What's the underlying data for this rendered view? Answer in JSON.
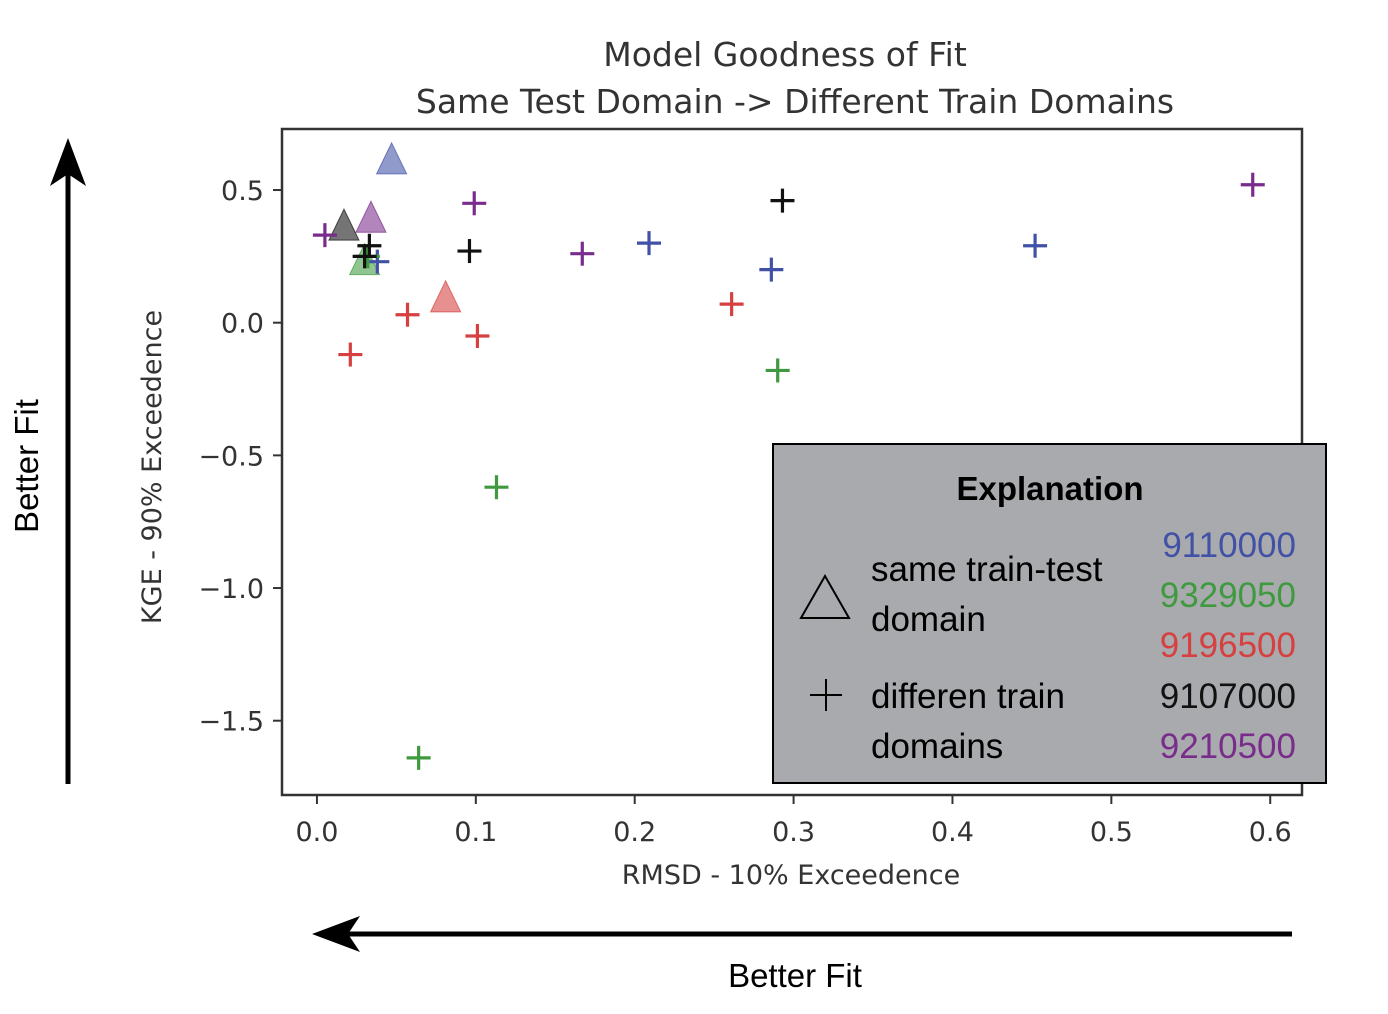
{
  "colors": {
    "9110000": "#4152a6",
    "9329050": "#3f9a3f",
    "9196500": "#d64040",
    "9107000": "#111111",
    "9210500": "#7a2c8c",
    "legend_background": "#a9aaad"
  },
  "chart_data": {
    "type": "scatter",
    "title": [
      "Model Goodness of Fit",
      "Same Test Domain -> Different Train Domains"
    ],
    "xlabel": "RMSD - 10% Exceedence",
    "ylabel": "KGE - 90% Exceedence",
    "xlim": [
      -0.022,
      0.62
    ],
    "ylim": [
      -1.78,
      0.73
    ],
    "x_ticks": [
      {
        "value": 0.0,
        "label": "0.0"
      },
      {
        "value": 0.1,
        "label": "0.1"
      },
      {
        "value": 0.2,
        "label": "0.2"
      },
      {
        "value": 0.3,
        "label": "0.3"
      },
      {
        "value": 0.4,
        "label": "0.4"
      },
      {
        "value": 0.5,
        "label": "0.5"
      },
      {
        "value": 0.6,
        "label": "0.6"
      }
    ],
    "y_ticks": [
      {
        "value": 0.5,
        "label": "0.5"
      },
      {
        "value": 0.0,
        "label": "0.0"
      },
      {
        "value": -0.5,
        "label": "−0.5"
      },
      {
        "value": -1.0,
        "label": "−1.0"
      },
      {
        "value": -1.5,
        "label": "−1.5"
      }
    ],
    "grid": false,
    "series": [
      {
        "color_key": "9110000",
        "marker": "triangle",
        "x": [
          0.047
        ],
        "y": [
          0.61
        ]
      },
      {
        "color_key": "9110000",
        "marker": "plus",
        "x": [
          0.038,
          0.209,
          0.286,
          0.452
        ],
        "y": [
          0.23,
          0.3,
          0.2,
          0.29
        ]
      },
      {
        "color_key": "9329050",
        "marker": "triangle",
        "x": [
          0.03
        ],
        "y": [
          0.23
        ]
      },
      {
        "color_key": "9329050",
        "marker": "plus",
        "x": [
          0.032,
          0.113,
          0.29,
          0.064
        ],
        "y": [
          0.25,
          -0.62,
          -0.18,
          -1.64
        ]
      },
      {
        "color_key": "9196500",
        "marker": "triangle",
        "x": [
          0.081
        ],
        "y": [
          0.09
        ]
      },
      {
        "color_key": "9196500",
        "marker": "plus",
        "x": [
          0.021,
          0.057,
          0.101,
          0.261
        ],
        "y": [
          -0.12,
          0.03,
          -0.05,
          0.07
        ]
      },
      {
        "color_key": "9107000",
        "marker": "triangle",
        "x": [
          0.017
        ],
        "y": [
          0.36
        ]
      },
      {
        "color_key": "9107000",
        "marker": "plus",
        "x": [
          0.033,
          0.03,
          0.096,
          0.293
        ],
        "y": [
          0.29,
          0.25,
          0.27,
          0.46
        ]
      },
      {
        "color_key": "9210500",
        "marker": "triangle",
        "x": [
          0.034
        ],
        "y": [
          0.39
        ]
      },
      {
        "color_key": "9210500",
        "marker": "plus",
        "x": [
          0.005,
          0.099,
          0.167,
          0.589
        ],
        "y": [
          0.33,
          0.45,
          0.26,
          0.52
        ]
      }
    ]
  },
  "annotations": {
    "y_arrow_label": "Better Fit",
    "x_arrow_label": "Better Fit"
  },
  "legend": {
    "title": "Explanation",
    "triangle_label": [
      "same train-test",
      "domain"
    ],
    "plus_label": [
      "differen train",
      "domains"
    ],
    "ids": [
      "9110000",
      "9329050",
      "9196500",
      "9107000",
      "9210500"
    ]
  }
}
